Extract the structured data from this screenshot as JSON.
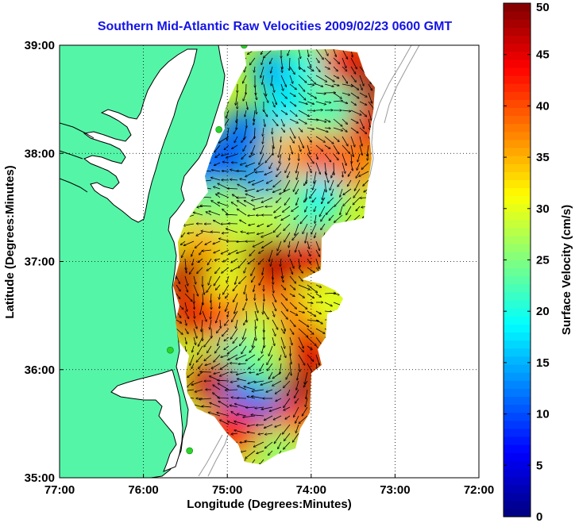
{
  "chart_data": {
    "type": "heatmap",
    "title": "Southern Mid-Atlantic Raw Velocities 2009/02/23 0600 GMT",
    "xlabel": "Longitude (Degrees:Minutes)",
    "ylabel": "Latitude (Degrees:Minutes)",
    "xlim": [
      -77,
      -72
    ],
    "ylim": [
      35,
      39
    ],
    "x_ticks": [
      {
        "value": -77,
        "label": "77:00"
      },
      {
        "value": -76,
        "label": "76:00"
      },
      {
        "value": -75,
        "label": "75:00"
      },
      {
        "value": -74,
        "label": "74:00"
      },
      {
        "value": -73,
        "label": "73:00"
      },
      {
        "value": -72,
        "label": "72:00"
      }
    ],
    "y_ticks": [
      {
        "value": 35,
        "label": "35:00"
      },
      {
        "value": 36,
        "label": "36:00"
      },
      {
        "value": 37,
        "label": "37:00"
      },
      {
        "value": 38,
        "label": "38:00"
      },
      {
        "value": 39,
        "label": "39:00"
      }
    ],
    "grid": true,
    "colorbar": {
      "label": "Surface Velocity (cm/s)",
      "range": [
        0,
        50
      ],
      "ticks": [
        "0",
        "5",
        "10",
        "15",
        "20",
        "25",
        "30",
        "35",
        "40",
        "45",
        "50"
      ],
      "colormap": "jet"
    },
    "velocity_patches": [
      {
        "lon": -74.45,
        "lat": 38.75,
        "speed": 15
      },
      {
        "lon": -74.0,
        "lat": 38.8,
        "speed": 20
      },
      {
        "lon": -73.6,
        "lat": 38.85,
        "speed": 44
      },
      {
        "lon": -73.3,
        "lat": 38.65,
        "speed": 48
      },
      {
        "lon": -74.3,
        "lat": 38.4,
        "speed": 18
      },
      {
        "lon": -73.7,
        "lat": 38.4,
        "speed": 22
      },
      {
        "lon": -73.3,
        "lat": 38.25,
        "speed": 45
      },
      {
        "lon": -74.8,
        "lat": 38.2,
        "speed": 12
      },
      {
        "lon": -74.2,
        "lat": 38.0,
        "speed": 35
      },
      {
        "lon": -73.85,
        "lat": 37.95,
        "speed": 42
      },
      {
        "lon": -73.5,
        "lat": 37.9,
        "speed": 38
      },
      {
        "lon": -75.1,
        "lat": 37.95,
        "speed": 10
      },
      {
        "lon": -75.35,
        "lat": 37.85,
        "speed": 12
      },
      {
        "lon": -74.6,
        "lat": 37.75,
        "speed": 14
      },
      {
        "lon": -73.9,
        "lat": 37.6,
        "speed": 18
      },
      {
        "lon": -75.2,
        "lat": 37.5,
        "speed": 25
      },
      {
        "lon": -74.6,
        "lat": 37.4,
        "speed": 28
      },
      {
        "lon": -74.0,
        "lat": 37.35,
        "speed": 22
      },
      {
        "lon": -75.3,
        "lat": 37.15,
        "speed": 35
      },
      {
        "lon": -74.5,
        "lat": 37.0,
        "speed": 48
      },
      {
        "lon": -74.0,
        "lat": 37.05,
        "speed": 45
      },
      {
        "lon": -75.45,
        "lat": 36.85,
        "speed": 47
      },
      {
        "lon": -75.0,
        "lat": 36.75,
        "speed": 30
      },
      {
        "lon": -74.55,
        "lat": 36.65,
        "speed": 42
      },
      {
        "lon": -75.4,
        "lat": 36.55,
        "speed": 45
      },
      {
        "lon": -75.0,
        "lat": 36.45,
        "speed": 40
      },
      {
        "lon": -74.6,
        "lat": 36.4,
        "speed": 28
      },
      {
        "lon": -74.15,
        "lat": 36.5,
        "speed": 38
      },
      {
        "lon": -73.8,
        "lat": 36.6,
        "speed": 30
      },
      {
        "lon": -74.0,
        "lat": 36.2,
        "speed": 45
      },
      {
        "lon": -74.9,
        "lat": 36.1,
        "speed": 22
      },
      {
        "lon": -75.15,
        "lat": 35.9,
        "speed": 46
      },
      {
        "lon": -74.6,
        "lat": 35.9,
        "speed": 24
      },
      {
        "lon": -74.15,
        "lat": 35.8,
        "speed": 48
      },
      {
        "lon": -74.8,
        "lat": 35.7,
        "speed": 12
      },
      {
        "lon": -74.45,
        "lat": 35.55,
        "speed": 10
      },
      {
        "lon": -74.95,
        "lat": 35.45,
        "speed": 42
      },
      {
        "lon": -74.55,
        "lat": 35.35,
        "speed": 44
      },
      {
        "lon": -74.2,
        "lat": 35.5,
        "speed": 40
      },
      {
        "lon": -74.4,
        "lat": 35.25,
        "speed": 26
      }
    ],
    "stations": [
      {
        "lon": -74.8,
        "lat": 39.0
      },
      {
        "lon": -75.1,
        "lat": 38.22
      },
      {
        "lon": -75.68,
        "lat": 36.18
      },
      {
        "lon": -75.45,
        "lat": 35.25
      }
    ]
  },
  "colors": {
    "title": "#1414e6",
    "land": "#55f5a8",
    "water": "#ffffff",
    "coastline": "#000000",
    "bathymetry": "#9a9a9a",
    "station": "#2bd42b"
  }
}
